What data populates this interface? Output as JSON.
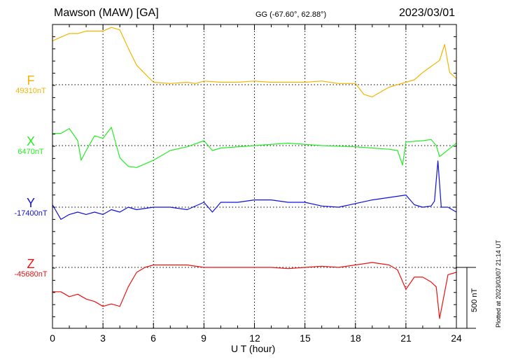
{
  "header": {
    "station": "Mawson (MAW)  [GA]",
    "coords": "GG (-67.60°,  62.88°)",
    "date": "2023/03/01"
  },
  "channels": [
    {
      "letter": "F",
      "baseline": "49310nT",
      "color": "#f5b400"
    },
    {
      "letter": "X",
      "baseline": "6470nT",
      "color": "#22ee22"
    },
    {
      "letter": "Y",
      "baseline": "-17400nT",
      "color": "#1010dd"
    },
    {
      "letter": "Z",
      "baseline": "-45680nT",
      "color": "#ee1111"
    }
  ],
  "axis": {
    "xlabel": "U T (hour)",
    "xticks": [
      "0",
      "3",
      "6",
      "9",
      "12",
      "15",
      "18",
      "21",
      "24"
    ]
  },
  "scale_bar": "500 nT",
  "plotted_note": "Plotted at 2023/03/07 21:14 UT",
  "chart_data": {
    "type": "line",
    "title": "Mawson (MAW)  [GA]",
    "xlabel": "U T (hour)",
    "ylabel": "",
    "xlim": [
      0,
      24
    ],
    "grid": true,
    "series": [
      {
        "name": "F",
        "baseline_nT": 49310,
        "x": [
          0,
          0.5,
          1,
          1.5,
          2,
          2.5,
          3,
          3.5,
          4,
          4.5,
          5,
          5.5,
          6,
          7,
          8,
          8.5,
          9,
          10,
          11,
          12,
          13,
          14,
          15,
          16,
          17,
          18,
          18.5,
          19,
          19.5,
          20,
          21,
          21.5,
          22,
          22.5,
          23,
          23.3,
          23.6,
          24
        ],
        "y": [
          360,
          390,
          420,
          420,
          440,
          440,
          440,
          470,
          450,
          300,
          160,
          90,
          20,
          10,
          20,
          10,
          30,
          20,
          20,
          30,
          20,
          20,
          20,
          30,
          10,
          10,
          -80,
          -100,
          -60,
          -20,
          20,
          40,
          100,
          150,
          200,
          330,
          100,
          50
        ]
      },
      {
        "name": "X",
        "baseline_nT": 6470,
        "x": [
          0,
          0.5,
          1,
          1.5,
          1.7,
          2,
          2.5,
          3,
          3.5,
          4,
          4.5,
          5,
          6,
          7,
          8,
          9,
          9.5,
          10,
          12,
          14,
          16,
          18,
          19,
          20,
          20.5,
          20.8,
          21,
          22,
          22.5,
          22.8,
          23,
          24
        ],
        "y": [
          100,
          100,
          140,
          40,
          -120,
          -40,
          80,
          60,
          150,
          -100,
          -170,
          -180,
          -120,
          -40,
          -10,
          40,
          -40,
          -20,
          0,
          20,
          0,
          -10,
          -20,
          -30,
          -40,
          -160,
          30,
          40,
          50,
          0,
          -90,
          20
        ]
      },
      {
        "name": "Y",
        "baseline_nT": -17400,
        "x": [
          0,
          0.5,
          1,
          1.5,
          2,
          2.5,
          3,
          3.5,
          4,
          4.5,
          5,
          6,
          7,
          8,
          9,
          9.5,
          10,
          11,
          12,
          13,
          14,
          15,
          16,
          17,
          18,
          19,
          20,
          21,
          21.5,
          22,
          22.5,
          22.7,
          22.9,
          23.1,
          23.5,
          24
        ],
        "y": [
          20,
          -100,
          -60,
          -40,
          -60,
          -40,
          -60,
          -20,
          -40,
          0,
          -20,
          0,
          0,
          -20,
          40,
          -40,
          40,
          40,
          60,
          60,
          40,
          40,
          10,
          0,
          30,
          60,
          80,
          100,
          20,
          0,
          10,
          50,
          380,
          0,
          0,
          -40
        ]
      },
      {
        "name": "Z",
        "baseline_nT": -45680,
        "x": [
          0,
          0.5,
          1,
          1.5,
          2,
          2.5,
          3,
          3.5,
          4,
          4.5,
          5,
          5.5,
          6,
          7,
          8,
          9,
          10,
          11,
          12,
          13,
          14,
          15,
          16,
          17,
          18,
          19,
          20,
          20.5,
          21,
          21.5,
          22,
          22.5,
          22.8,
          23,
          23.5,
          24
        ],
        "y": [
          -200,
          -200,
          -240,
          -220,
          -260,
          -280,
          -320,
          -300,
          -320,
          -160,
          -40,
          0,
          20,
          20,
          20,
          0,
          0,
          0,
          0,
          0,
          -10,
          0,
          10,
          0,
          20,
          40,
          20,
          -20,
          -180,
          -80,
          -80,
          -120,
          -160,
          -420,
          -60,
          -40
        ]
      }
    ]
  }
}
